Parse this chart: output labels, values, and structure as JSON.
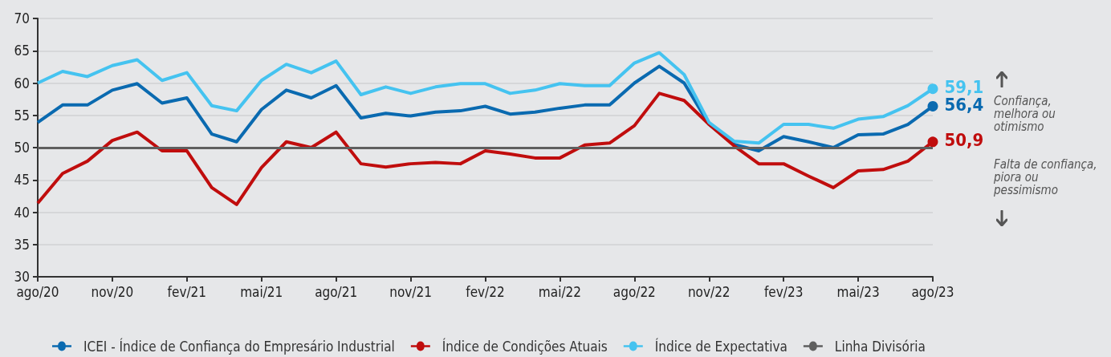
{
  "chart_data": {
    "type": "line",
    "categories": [
      "ago/20",
      null,
      null,
      "nov/20",
      null,
      null,
      "fev/21",
      null,
      null,
      "mai/21",
      null,
      null,
      "ago/21",
      null,
      null,
      "nov/21",
      null,
      null,
      "fev/22",
      null,
      null,
      "mai/22",
      null,
      null,
      "ago/22",
      null,
      null,
      "nov/22",
      null,
      null,
      "fev/23",
      null,
      null,
      "mai/23",
      null,
      null,
      "ago/23"
    ],
    "series": [
      {
        "name": "ICEI - Índice de Confiança do Empresário Industrial",
        "color": "#0a6ab0",
        "values": [
          53.9,
          56.6,
          56.6,
          58.9,
          59.9,
          56.9,
          57.7,
          52.1,
          50.9,
          55.9,
          58.9,
          57.7,
          59.6,
          54.6,
          55.3,
          54.9,
          55.5,
          55.7,
          56.4,
          55.2,
          55.5,
          56.1,
          56.6,
          56.6,
          60.0,
          62.6,
          60.0,
          53.6,
          50.5,
          49.5,
          51.7,
          50.9,
          50.0,
          52.0,
          52.1,
          53.6,
          56.4
        ],
        "value_labels": [
          null,
          null,
          null,
          null,
          null,
          null,
          null,
          null,
          null,
          null,
          null,
          null,
          null,
          null,
          null,
          null,
          null,
          null,
          null,
          null,
          null,
          null,
          null,
          null,
          null,
          null,
          null,
          null,
          null,
          null,
          null,
          null,
          null,
          null,
          null,
          null,
          "56,4"
        ]
      },
      {
        "name": "Índice de Condições Atuais",
        "color": "#c00d0d",
        "values": [
          41.4,
          46.0,
          47.9,
          51.1,
          52.4,
          49.5,
          49.5,
          43.8,
          41.2,
          46.9,
          50.9,
          50.0,
          52.4,
          47.5,
          47.0,
          47.5,
          47.7,
          47.5,
          49.5,
          49.0,
          48.4,
          48.4,
          50.4,
          50.7,
          53.4,
          58.4,
          57.3,
          53.6,
          50.3,
          47.5,
          47.5,
          45.6,
          43.8,
          46.4,
          46.6,
          47.9,
          50.9
        ],
        "value_labels": [
          null,
          null,
          null,
          null,
          null,
          null,
          null,
          null,
          null,
          null,
          null,
          null,
          null,
          null,
          null,
          null,
          null,
          null,
          null,
          null,
          null,
          null,
          null,
          null,
          null,
          null,
          null,
          null,
          null,
          null,
          null,
          null,
          null,
          null,
          null,
          null,
          "50,9"
        ]
      },
      {
        "name": "Índice de Expectativa",
        "color": "#45c3f0",
        "values": [
          60.0,
          61.8,
          61.0,
          62.7,
          63.6,
          60.4,
          61.6,
          56.5,
          55.7,
          60.4,
          62.9,
          61.6,
          63.4,
          58.2,
          59.4,
          58.4,
          59.4,
          59.9,
          59.9,
          58.4,
          58.9,
          59.9,
          59.6,
          59.6,
          63.1,
          64.7,
          61.3,
          53.9,
          51.0,
          50.7,
          53.6,
          53.6,
          53.0,
          54.4,
          54.8,
          56.5,
          59.1
        ],
        "value_labels": [
          null,
          null,
          null,
          null,
          null,
          null,
          null,
          null,
          null,
          null,
          null,
          null,
          null,
          null,
          null,
          null,
          null,
          null,
          null,
          null,
          null,
          null,
          null,
          null,
          null,
          null,
          null,
          null,
          null,
          null,
          null,
          null,
          null,
          null,
          null,
          null,
          "59,1"
        ]
      }
    ],
    "ref_lines": [
      {
        "axis": "y",
        "value": 50,
        "label": "Linha Divisória",
        "color": "#5f5f5f"
      }
    ],
    "annotations": [
      "Confiança, melhora ou otimismo",
      "Falta de confiança, piora ou pessimismo"
    ],
    "ylim": [
      30,
      70
    ],
    "yticks": [
      30,
      35,
      40,
      45,
      50,
      55,
      60,
      65,
      70
    ],
    "grid": "y",
    "legend": "bottom",
    "marker": "none",
    "line_style": "solid"
  }
}
